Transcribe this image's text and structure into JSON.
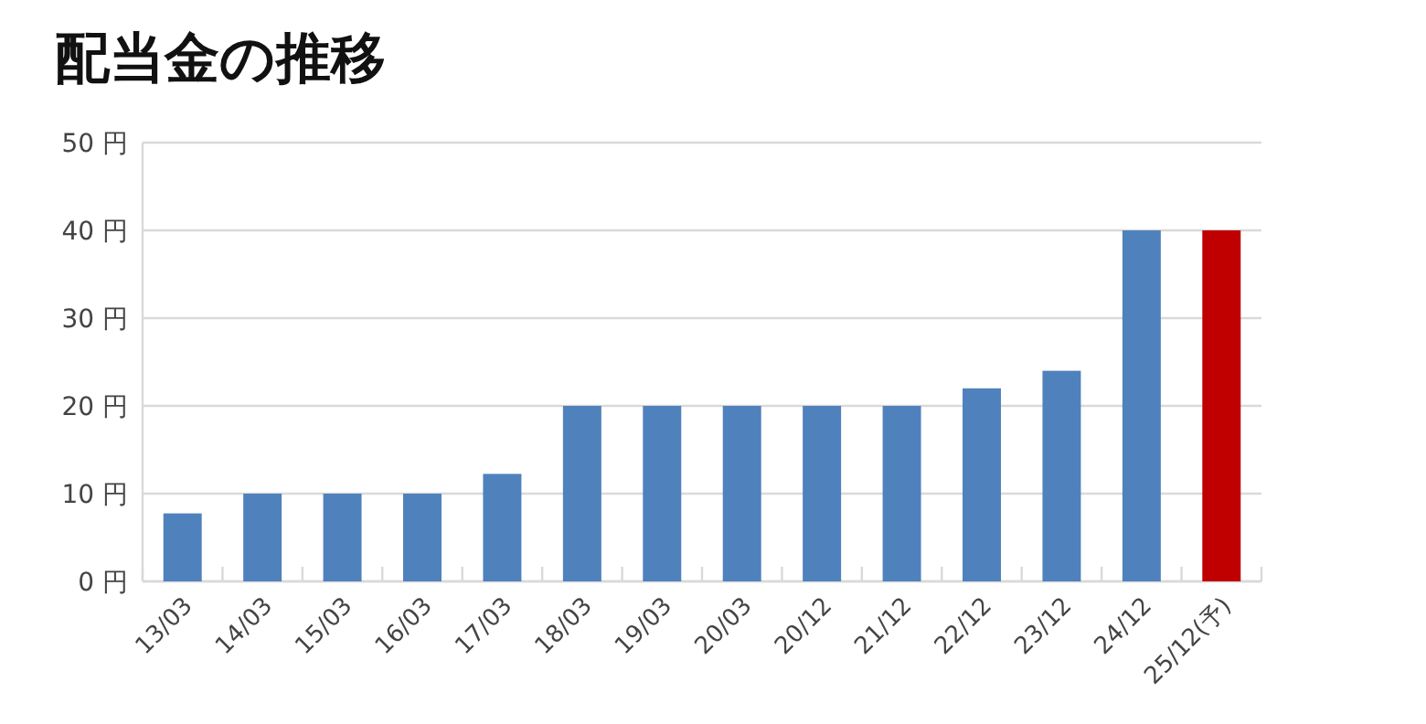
{
  "chart_data": {
    "type": "bar",
    "title": "配当金の推移",
    "categories": [
      "13/03",
      "14/03",
      "15/03",
      "16/03",
      "17/03",
      "18/03",
      "19/03",
      "20/03",
      "20/12",
      "21/12",
      "22/12",
      "23/12",
      "24/12",
      "25/12(予)"
    ],
    "values": [
      7.75,
      10,
      10,
      10,
      12.25,
      20,
      20,
      20,
      20,
      20,
      22,
      24,
      40,
      40
    ],
    "colors": [
      "#4f81bd",
      "#4f81bd",
      "#4f81bd",
      "#4f81bd",
      "#4f81bd",
      "#4f81bd",
      "#4f81bd",
      "#4f81bd",
      "#4f81bd",
      "#4f81bd",
      "#4f81bd",
      "#4f81bd",
      "#4f81bd",
      "#c00000"
    ],
    "ylim": [
      0,
      50
    ],
    "yticks": [
      {
        "value": 0,
        "label": "0 円"
      },
      {
        "value": 10,
        "label": "10 円"
      },
      {
        "value": 20,
        "label": "20 円"
      },
      {
        "value": 30,
        "label": "30 円"
      },
      {
        "value": 40,
        "label": "40 円"
      },
      {
        "value": 50,
        "label": "50 円"
      }
    ],
    "grid": "y"
  }
}
